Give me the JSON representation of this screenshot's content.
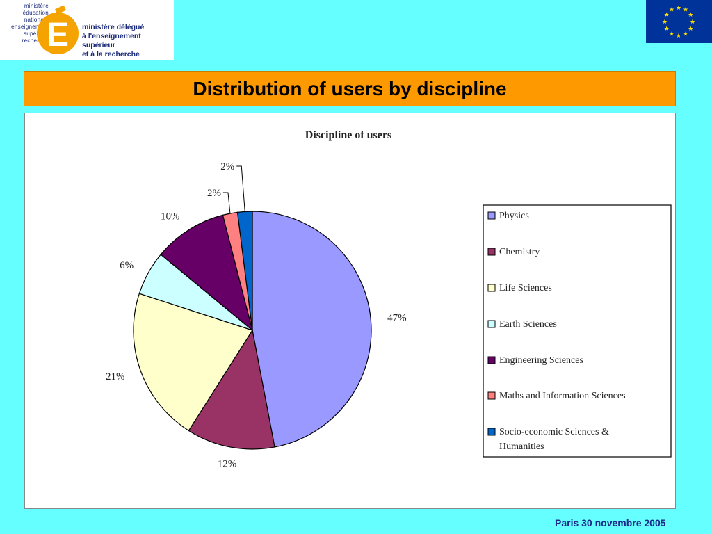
{
  "header": {
    "logo_left_lines": [
      "ministère",
      "éducation",
      "nationale",
      "enseignement",
      "supérieur",
      "recherche"
    ],
    "logo_right_lines": [
      "ministère délégué",
      "à l'enseignement supérieur",
      "et à la recherche"
    ]
  },
  "slide": {
    "title": "Distribution of users by discipline",
    "footer": "Paris 30 novembre 2005"
  },
  "colors": {
    "background": "#66ffff",
    "title_bar": "#ff9900",
    "eu_flag": "#003399",
    "eu_star": "#ffdd00"
  },
  "chart_data": {
    "type": "pie",
    "title": "Discipline of users",
    "legend_position": "right",
    "slices": [
      {
        "label": "Physics",
        "value": 47,
        "display": "47%",
        "color": "#9999ff"
      },
      {
        "label": "Chemistry",
        "value": 12,
        "display": "12%",
        "color": "#993366"
      },
      {
        "label": "Life Sciences",
        "value": 21,
        "display": "21%",
        "color": "#ffffcc"
      },
      {
        "label": "Earth Sciences",
        "value": 6,
        "display": "6%",
        "color": "#ccffff"
      },
      {
        "label": "Engineering Sciences",
        "value": 10,
        "display": "10%",
        "color": "#660066"
      },
      {
        "label": "Maths and Information Sciences",
        "value": 2,
        "display": "2%",
        "color": "#ff8080"
      },
      {
        "label": "Socio-economic Sciences & Humanities",
        "value": 2,
        "display": "2%",
        "color": "#0066cc"
      }
    ]
  }
}
